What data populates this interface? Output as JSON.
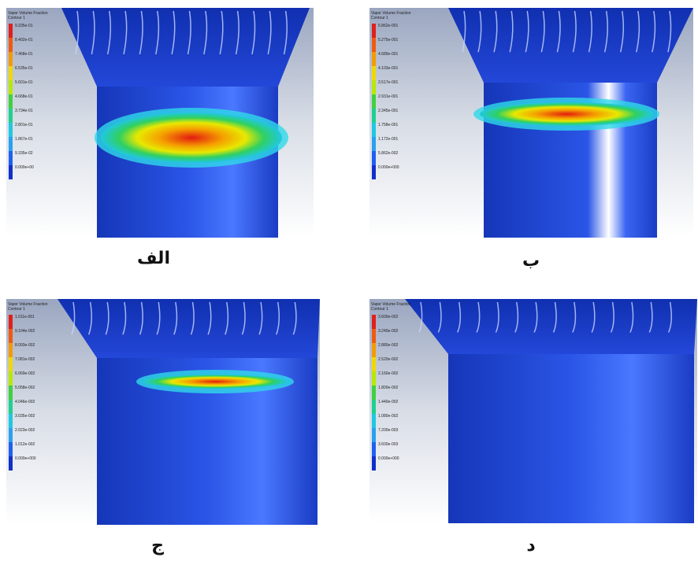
{
  "panels": [
    {
      "label": "الف",
      "legend_title": "Vapor Volume Fraction",
      "legend_subtitle": "Contour 1",
      "legend_values": [
        "9.335e-01",
        "8.402e-01",
        "7.468e-01",
        "6.535e-01",
        "5.601e-01",
        "4.668e-01",
        "3.734e-01",
        "2.801e-01",
        "1.867e-01",
        "9.335e-02",
        "0.000e+00"
      ]
    },
    {
      "label": "ب",
      "legend_title": "Vapor Volume Fraction",
      "legend_subtitle": "Contour 1",
      "legend_values": [
        "5.862e-001",
        "5.275e-001",
        "4.689e-001",
        "4.103e-001",
        "3.517e-001",
        "2.931e-001",
        "2.345e-001",
        "1.758e-001",
        "1.172e-001",
        "5.862e-002",
        "0.000e+000"
      ]
    },
    {
      "label": "ج",
      "legend_title": "Vapor Volume Fraction",
      "legend_subtitle": "Contour 1",
      "legend_values": [
        "1.011e-001",
        "9.104e-002",
        "8.093e-002",
        "7.081e-002",
        "6.069e-002",
        "5.058e-002",
        "4.046e-002",
        "3.035e-002",
        "2.023e-002",
        "1.012e-002",
        "0.000e+000"
      ]
    },
    {
      "label": "د",
      "legend_title": "Vapor Volume Fraction",
      "legend_subtitle": "Contour 1",
      "legend_values": [
        "3.600e-002",
        "3.240e-002",
        "2.880e-002",
        "2.520e-002",
        "2.160e-002",
        "1.800e-002",
        "1.440e-002",
        "1.080e-002",
        "7.200e-003",
        "3.600e-003",
        "0.000e+000"
      ]
    }
  ]
}
